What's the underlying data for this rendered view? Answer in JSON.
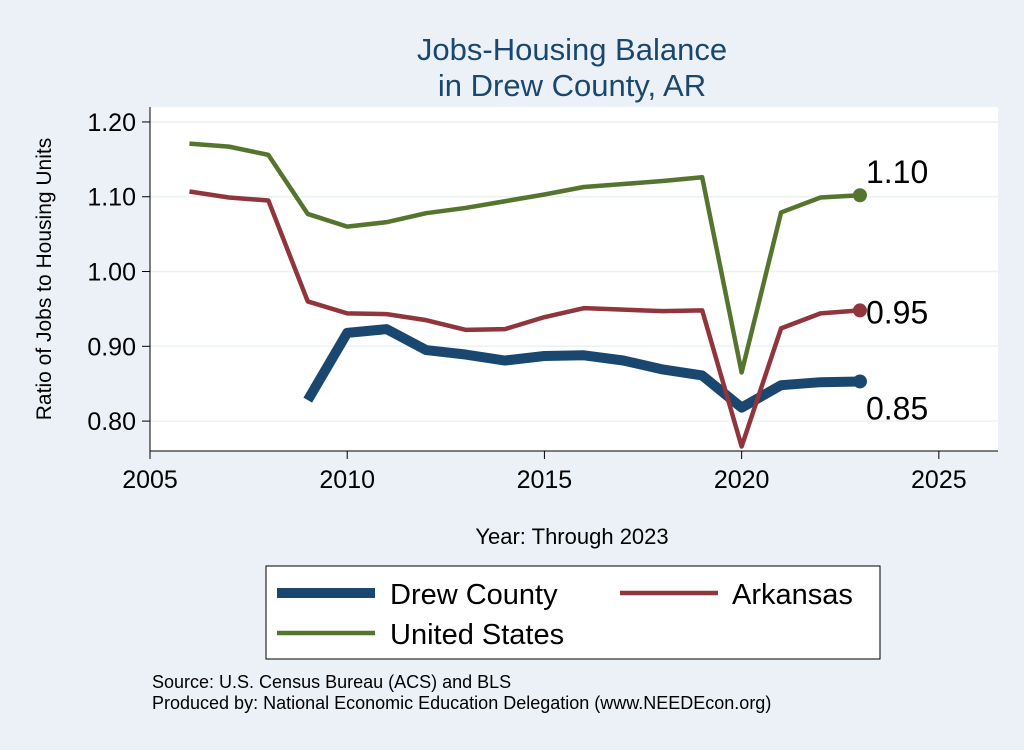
{
  "chart_data": {
    "type": "line",
    "title": [
      "Jobs-Housing Balance",
      "in Drew County, AR"
    ],
    "xlabel": "Year: Through 2023",
    "ylabel": "Ratio of Jobs to Housing Units",
    "xlim": [
      2005,
      2026.5
    ],
    "ylim": [
      0.76,
      1.22
    ],
    "xticks": [
      2005,
      2010,
      2015,
      2020,
      2025
    ],
    "yticks": [
      0.8,
      0.9,
      1.0,
      1.1,
      1.2
    ],
    "ytick_labels": [
      "0.80",
      "0.90",
      "1.00",
      "1.10",
      "1.20"
    ],
    "grid": true,
    "legend_position": "bottom",
    "series": [
      {
        "name": "Drew County",
        "color": "#1a476f",
        "end_label": "0.85",
        "x": [
          2009,
          2010,
          2011,
          2012,
          2013,
          2014,
          2015,
          2016,
          2017,
          2018,
          2019,
          2020,
          2021,
          2022,
          2023
        ],
        "values": [
          0.828,
          0.918,
          0.923,
          0.895,
          0.889,
          0.881,
          0.887,
          0.888,
          0.881,
          0.869,
          0.861,
          0.818,
          0.848,
          0.852,
          0.853
        ]
      },
      {
        "name": "Arkansas",
        "color": "#90353b",
        "end_label": "0.95",
        "x": [
          2006,
          2007,
          2008,
          2009,
          2010,
          2011,
          2012,
          2013,
          2014,
          2015,
          2016,
          2017,
          2018,
          2019,
          2020,
          2021,
          2022,
          2023
        ],
        "values": [
          1.107,
          1.099,
          1.095,
          0.96,
          0.944,
          0.943,
          0.935,
          0.922,
          0.923,
          0.939,
          0.951,
          0.949,
          0.947,
          0.948,
          0.766,
          0.924,
          0.944,
          0.948
        ]
      },
      {
        "name": "United States",
        "color": "#55752f",
        "end_label": "1.10",
        "x": [
          2006,
          2007,
          2008,
          2009,
          2010,
          2011,
          2012,
          2013,
          2014,
          2015,
          2016,
          2017,
          2018,
          2019,
          2020,
          2021,
          2022,
          2023
        ],
        "values": [
          1.171,
          1.167,
          1.156,
          1.077,
          1.06,
          1.066,
          1.078,
          1.085,
          1.094,
          1.103,
          1.113,
          1.117,
          1.121,
          1.126,
          0.865,
          1.079,
          1.099,
          1.102
        ]
      }
    ],
    "notes": [
      "Source: U.S. Census Bureau (ACS) and BLS",
      "Produced by: National Economic Education Delegation (www.NEEDEcon.org)"
    ]
  }
}
